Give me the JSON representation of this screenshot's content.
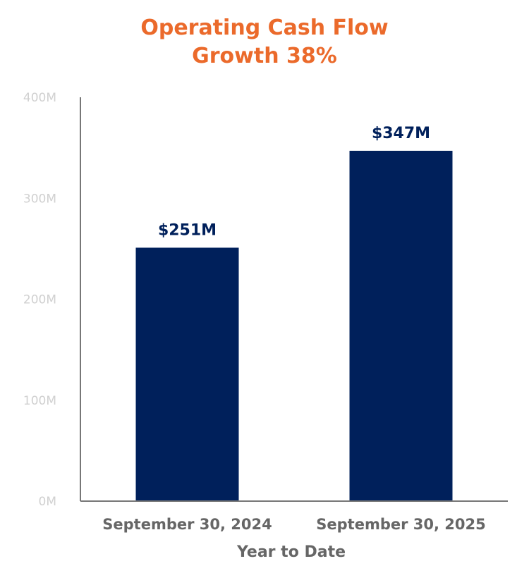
{
  "colors": {
    "title": "#EB6A2B",
    "bar": "#00205B",
    "value_label": "#00205B",
    "tick_label": "#D0D0D0",
    "category_label": "#666666",
    "axis_line": "#777777"
  },
  "chart_data": {
    "type": "bar",
    "title": [
      "Operating Cash Flow",
      "Growth 38%"
    ],
    "xlabel": "Year to Date",
    "ylabel": "",
    "categories": [
      "September 30, 2024",
      "September 30, 2025"
    ],
    "values": [
      251,
      347
    ],
    "value_labels": [
      "$251M",
      "$347M"
    ],
    "ylim": [
      0,
      400
    ],
    "yticks": [
      0,
      100,
      200,
      300,
      400
    ],
    "ytick_labels": [
      "0M",
      "100M",
      "200M",
      "300M",
      "400M"
    ],
    "grid": false,
    "legend": "none"
  }
}
